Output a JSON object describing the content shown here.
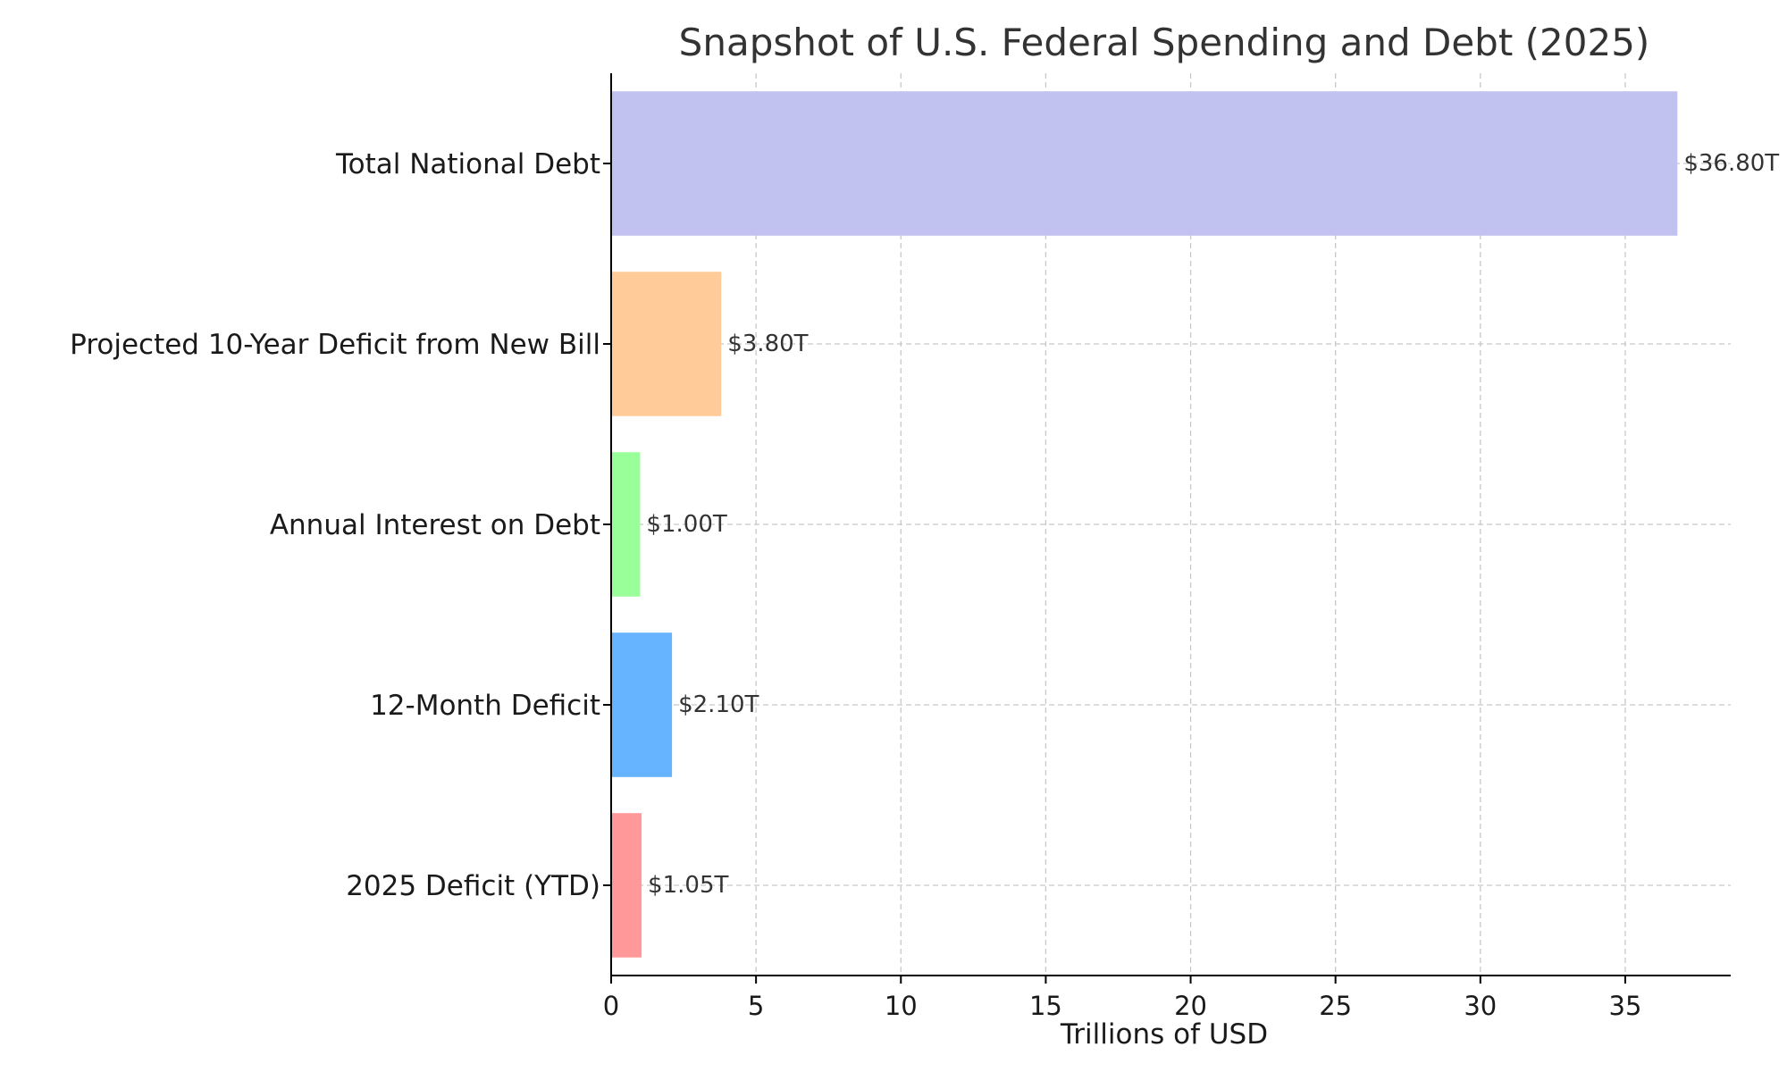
{
  "chart_data": {
    "type": "bar",
    "orientation": "horizontal",
    "title": "Snapshot of U.S. Federal Spending and Debt (2025)",
    "xlabel": "Trillions of USD",
    "ylabel": "",
    "xlim": [
      0,
      38.64
    ],
    "xticks": [
      0,
      5,
      10,
      15,
      20,
      25,
      30,
      35
    ],
    "grid": true,
    "categories": [
      "Total National Debt",
      "Projected 10-Year Deficit from New Bill",
      "Annual Interest on Debt",
      "12-Month Deficit",
      "2025 Deficit (YTD)"
    ],
    "values": [
      36.8,
      3.8,
      1.0,
      2.1,
      1.05
    ],
    "value_labels": [
      "$36.80T",
      "$3.80T",
      "$1.00T",
      "$2.10T",
      "$1.05T"
    ],
    "colors": [
      "#c2c2f0",
      "#ffcc99",
      "#99ff99",
      "#66b3ff",
      "#ff9999"
    ]
  }
}
